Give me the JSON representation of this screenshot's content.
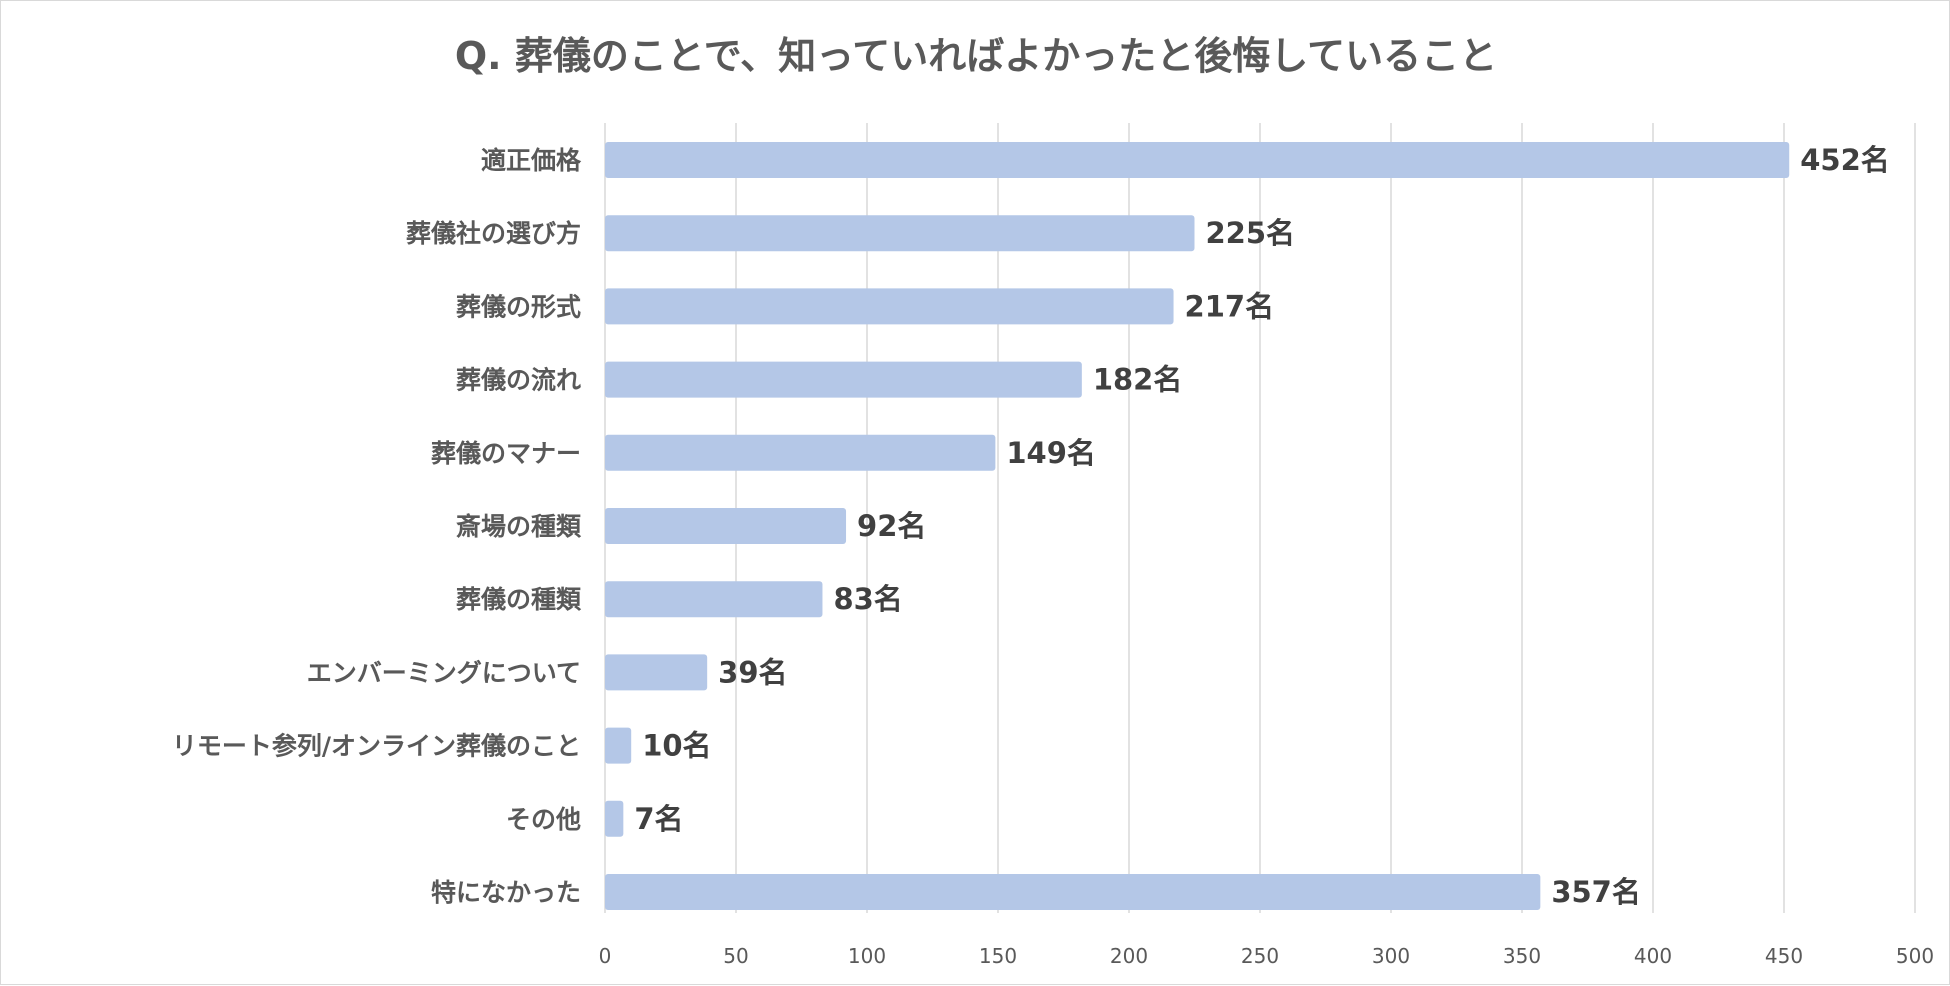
{
  "chart_data": {
    "type": "bar",
    "orientation": "horizontal",
    "title": "Q. 葬儀のことで、知っていればよかったと後悔していること",
    "xlabel": "",
    "ylabel": "",
    "categories": [
      "適正価格",
      "葬儀社の選び方",
      "葬儀の形式",
      "葬儀の流れ",
      "葬儀のマナー",
      "斎場の種類",
      "葬儀の種類",
      "エンバーミングについて",
      "リモート参列/オンライン葬儀のこと",
      "その他",
      "特になかった"
    ],
    "series": [
      {
        "values": [
          452,
          225,
          217,
          182,
          149,
          92,
          83,
          39,
          10,
          7,
          357
        ],
        "data_labels": [
          "452名",
          "225名",
          "217名",
          "182名",
          "149名",
          "92名",
          "83名",
          "39名",
          "10名",
          "7名",
          "357名"
        ]
      }
    ],
    "xlim": [
      0,
      500
    ],
    "xticks": [
      0,
      50,
      100,
      150,
      200,
      250,
      300,
      350,
      400,
      450,
      500
    ],
    "xtick_labels": [
      "0",
      "50",
      "100",
      "150",
      "200",
      "250",
      "300",
      "350",
      "400",
      "450",
      "500"
    ],
    "grid": "vertical",
    "legend": "none",
    "bar_color": "#b4c7e7"
  }
}
